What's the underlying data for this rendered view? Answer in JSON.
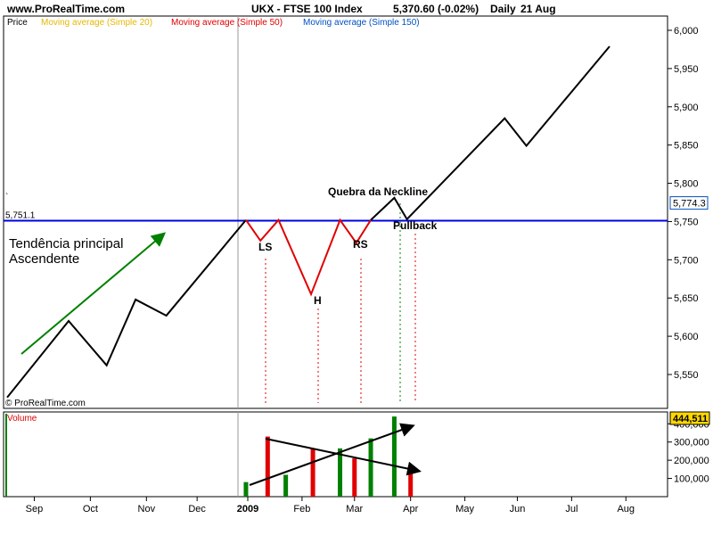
{
  "header": {
    "site": "www.ProRealTime.com",
    "instrument": "UKX - FTSE 100 Index",
    "quote": "5,370.60 (-0.02%)",
    "period": "Daily",
    "date": "21 Aug"
  },
  "legend": [
    {
      "label": "Price",
      "color": "#000000"
    },
    {
      "label": "Moving average (Simple 20)",
      "color": "#e6b800"
    },
    {
      "label": "Moving average (Simple 50)",
      "color": "#e00000"
    },
    {
      "label": "Moving average (Simple 150)",
      "color": "#0050c0"
    }
  ],
  "copyright": "© ProRealTime.com",
  "volume_label": "Volume",
  "colors": {
    "price_line": "#000000",
    "pattern_line": "#e00000",
    "neckline": "#0000e0",
    "trend_arrow": "#008000",
    "volume_up": "#008000",
    "volume_down": "#e00000",
    "last_price_badge": "#0050c0",
    "volume_badge": "#ffd800"
  },
  "chart_data": [
    {
      "type": "line",
      "title": "UKX - FTSE 100 Index",
      "ylim": [
        5508,
        6020
      ],
      "yticks": [
        "6,000",
        "5,950",
        "5,900",
        "5,850",
        "5,800",
        "5,750",
        "5,700",
        "5,650",
        "5,600",
        "5,550"
      ],
      "ytick_values": [
        6000,
        5950,
        5900,
        5850,
        5800,
        5750,
        5700,
        5650,
        5600,
        5550
      ],
      "xticks": [
        "Sep",
        "Oct",
        "Nov",
        "Dec",
        "2009",
        "Feb",
        "Mar",
        "Apr",
        "May",
        "Jun",
        "Jul",
        "Aug"
      ],
      "xtick_index": [
        1.5,
        4.6,
        7.7,
        10.5,
        13.3,
        16.3,
        19.2,
        22.3,
        25.3,
        28.2,
        31.2,
        34.2
      ],
      "series": [
        {
          "role": "trend",
          "x": [
            0,
            3.4,
            5.5,
            7.1,
            8.8,
            13.2
          ],
          "y": [
            5520,
            5620,
            5562,
            5648,
            5627,
            5752
          ]
        },
        {
          "role": "pattern",
          "x": [
            13.2,
            14.0,
            15.0,
            16.8,
            18.4,
            19.3,
            20.1
          ],
          "y": [
            5752,
            5725,
            5752,
            5655,
            5752,
            5722,
            5752
          ]
        },
        {
          "role": "trend",
          "x": [
            20.1,
            21.4,
            22.1,
            27.5,
            28.7,
            33.3
          ],
          "y": [
            5752,
            5781,
            5753,
            5885,
            5849,
            5979
          ]
        }
      ],
      "neckline": {
        "value": 5751.1,
        "label": "5,751.1"
      },
      "last_price": "5,774.3",
      "annotations": {
        "trend_label": [
          "Tendência principal",
          "Ascendente"
        ],
        "left_shoulder": "LS",
        "head": "H",
        "right_shoulder": "RS",
        "breakout": "Quebra da Neckline",
        "pullback": "Pullback"
      }
    },
    {
      "type": "bar",
      "title": "Volume",
      "ylim": [
        0,
        470000
      ],
      "yticks": [
        "400,000",
        "300,000",
        "200,000",
        "100,000"
      ],
      "ytick_values": [
        400000,
        300000,
        200000,
        100000
      ],
      "last_value": "444,511",
      "bars": [
        {
          "x": 13.2,
          "value": 80000,
          "direction": "up"
        },
        {
          "x": 14.4,
          "value": 330000,
          "direction": "down"
        },
        {
          "x": 15.4,
          "value": 120000,
          "direction": "up"
        },
        {
          "x": 16.9,
          "value": 265000,
          "direction": "down"
        },
        {
          "x": 18.4,
          "value": 265000,
          "direction": "up"
        },
        {
          "x": 19.2,
          "value": 210000,
          "direction": "down"
        },
        {
          "x": 20.1,
          "value": 320000,
          "direction": "up"
        },
        {
          "x": 21.4,
          "value": 440000,
          "direction": "up"
        },
        {
          "x": 22.3,
          "value": 140000,
          "direction": "down"
        }
      ]
    }
  ]
}
